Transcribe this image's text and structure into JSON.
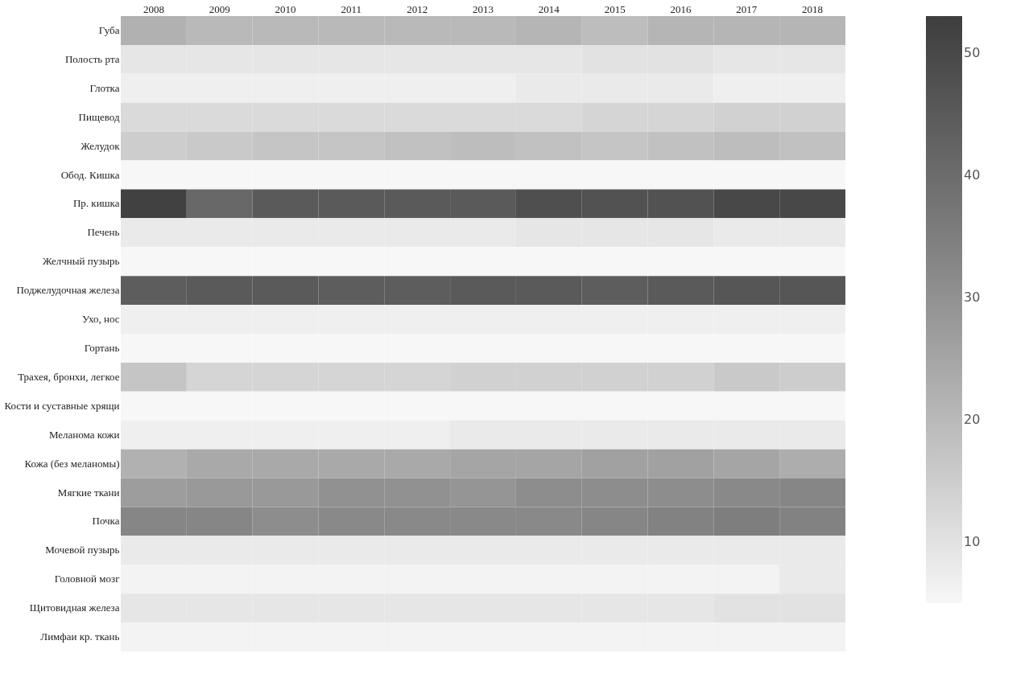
{
  "chart_data": {
    "type": "heatmap",
    "categories": [
      "2008",
      "2009",
      "2010",
      "2011",
      "2012",
      "2013",
      "2014",
      "2015",
      "2016",
      "2017",
      "2018"
    ],
    "y_categories": [
      "Губа",
      "Полость рта",
      "Глотка",
      "Пищевод",
      "Желудок",
      "Обод. Кишка",
      "Пр. кишка",
      "Печень",
      "Желчный пузырь",
      "Поджелудочная железа",
      "Ухо, нос",
      "Гортань",
      "Трахея, бронхи, легкое",
      "Кости и суставные хрящи",
      "Меланома кожи",
      "Кожа (без меланомы)",
      "Мягкие ткани",
      "Почка",
      "Мочевой пузырь",
      "Головной мозг",
      "Щитовидная железа",
      "Лимфаи кр. ткань"
    ],
    "cells": [
      [
        22,
        20,
        20,
        20,
        20,
        20,
        21,
        19,
        21,
        21,
        21
      ],
      [
        9,
        9,
        9,
        9,
        9,
        9,
        9,
        10,
        10,
        9,
        9
      ],
      [
        7,
        7,
        7,
        7,
        7,
        7,
        8,
        8,
        8,
        7,
        7
      ],
      [
        12,
        12,
        12,
        12,
        12,
        12,
        12,
        13,
        13,
        14,
        14
      ],
      [
        15,
        16,
        17,
        17,
        18,
        19,
        18,
        17,
        18,
        19,
        18
      ],
      [
        5,
        5,
        5,
        5,
        5,
        5,
        5,
        5,
        5,
        5,
        5
      ],
      [
        52,
        41,
        45,
        45,
        45,
        45,
        48,
        47,
        47,
        50,
        50
      ],
      [
        8,
        8,
        8,
        8,
        8,
        8,
        9,
        9,
        9,
        8,
        8
      ],
      [
        5,
        5,
        5,
        5,
        5,
        5,
        5,
        5,
        5,
        5,
        5
      ],
      [
        44,
        45,
        45,
        44,
        44,
        45,
        45,
        44,
        45,
        46,
        46
      ],
      [
        7,
        7,
        7,
        7,
        7,
        7,
        7,
        7,
        7,
        7,
        7
      ],
      [
        5,
        5,
        5,
        5,
        5,
        5,
        5,
        5,
        5,
        5,
        5
      ],
      [
        17,
        13,
        13,
        13,
        13,
        14,
        14,
        14,
        14,
        16,
        15
      ],
      [
        5,
        5,
        5,
        5,
        5,
        5,
        5,
        5,
        5,
        5,
        5
      ],
      [
        7,
        7,
        7,
        7,
        7,
        8,
        8,
        8,
        8,
        8,
        8
      ],
      [
        22,
        24,
        24,
        24,
        24,
        25,
        25,
        26,
        26,
        25,
        23
      ],
      [
        27,
        28,
        28,
        30,
        30,
        29,
        31,
        31,
        31,
        32,
        33
      ],
      [
        33,
        33,
        31,
        32,
        32,
        32,
        32,
        33,
        34,
        35,
        34
      ],
      [
        8,
        8,
        8,
        8,
        8,
        8,
        8,
        8,
        8,
        8,
        8
      ],
      [
        6,
        6,
        6,
        6,
        6,
        6,
        6,
        6,
        6,
        6,
        8
      ],
      [
        9,
        9,
        9,
        9,
        9,
        9,
        9,
        9,
        9,
        10,
        10
      ],
      [
        6,
        6,
        6,
        6,
        6,
        6,
        6,
        6,
        6,
        6,
        6
      ]
    ],
    "clim": [
      5,
      53
    ],
    "cticks": [
      10,
      20,
      30,
      40,
      50
    ],
    "colors": [
      "#f7f7f7",
      "#3e3e3e"
    ]
  }
}
